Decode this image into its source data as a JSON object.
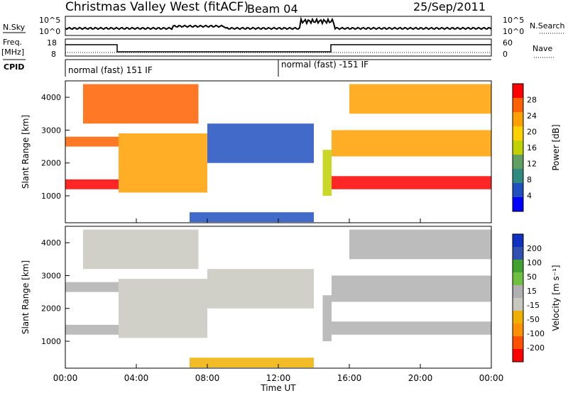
{
  "header": {
    "title": "Christmas Valley West (fitACF)",
    "beam": "Beam 04",
    "date": "25/Sep/2011"
  },
  "labels": {
    "nsky": "N.Sky",
    "freq": "Freq.",
    "mhz": "[MHz]",
    "cpid": "CPID",
    "nsearch": "N.Search",
    "nave": "Nave",
    "time_axis": "Time UT",
    "power_axis": "Power [dB]",
    "velocity_axis": "Velocity [m s⁻¹]",
    "slant_range": "Slant Range [km]"
  },
  "strip_ticks": {
    "nsky_left": [
      "10^5",
      "10^0"
    ],
    "nsky_right": [
      "10^5",
      "10^0"
    ],
    "freq_left": [
      "18",
      "8"
    ],
    "nave_right": [
      "60",
      "0"
    ]
  },
  "cpid": {
    "segments": [
      "normal (fast) 151 IF",
      "normal (fast) -151 IF"
    ]
  },
  "colors": {
    "power_scale": [
      "#0000ff",
      "#2050c0",
      "#308a80",
      "#60a060",
      "#c0d000",
      "#ffd000",
      "#ffa000",
      "#ff6000",
      "#ff0000"
    ],
    "velocity_scale": [
      "#ff0000",
      "#ff5000",
      "#ff9000",
      "#f0b000",
      "#c8c8c0",
      "#b0b0b0",
      "#70c040",
      "#40a030",
      "#3050b0",
      "#1030c0"
    ]
  },
  "chart_data": [
    {
      "type": "heatmap",
      "title": "",
      "xlabel": "Time UT",
      "ylabel": "Slant Range [km]",
      "x_ticks": [
        "00:00",
        "04:00",
        "08:00",
        "12:00",
        "16:00",
        "20:00",
        "00:00"
      ],
      "xlim_hours": [
        0,
        24
      ],
      "ylim": [
        180,
        4500
      ],
      "y_ticks": [
        1000,
        2000,
        3000,
        4000
      ],
      "colorbar": {
        "label": "Power [dB]",
        "ticks": [
          4,
          8,
          12,
          16,
          20,
          24,
          28
        ],
        "range": [
          0,
          30
        ]
      },
      "features": [
        {
          "time_start": 0.0,
          "time_end": 3.0,
          "range_start": 1200,
          "range_end": 1500,
          "level": 28
        },
        {
          "time_start": 0.0,
          "time_end": 3.0,
          "range_start": 2500,
          "range_end": 2800,
          "level": 24
        },
        {
          "time_start": 3.0,
          "time_end": 8.0,
          "range_start": 1100,
          "range_end": 2900,
          "level": 22
        },
        {
          "time_start": 1.0,
          "time_end": 7.5,
          "range_start": 3200,
          "range_end": 4400,
          "level": 24
        },
        {
          "time_start": 8.0,
          "time_end": 14.0,
          "range_start": 2000,
          "range_end": 3200,
          "level": 5
        },
        {
          "time_start": 7.0,
          "time_end": 14.0,
          "range_start": 200,
          "range_end": 500,
          "level": 6
        },
        {
          "time_start": 14.5,
          "time_end": 15.0,
          "range_start": 1000,
          "range_end": 2400,
          "level": 14
        },
        {
          "time_start": 15.0,
          "time_end": 24.0,
          "range_start": 1200,
          "range_end": 1600,
          "level": 28
        },
        {
          "time_start": 15.0,
          "time_end": 24.0,
          "range_start": 2200,
          "range_end": 3000,
          "level": 20
        },
        {
          "time_start": 16.0,
          "time_end": 24.0,
          "range_start": 3500,
          "range_end": 4400,
          "level": 22
        }
      ]
    },
    {
      "type": "heatmap",
      "title": "",
      "xlabel": "Time UT",
      "ylabel": "Slant Range [km]",
      "x_ticks": [
        "00:00",
        "04:00",
        "08:00",
        "12:00",
        "16:00",
        "20:00",
        "00:00"
      ],
      "xlim_hours": [
        0,
        24
      ],
      "ylim": [
        180,
        4500
      ],
      "y_ticks": [
        1000,
        2000,
        3000,
        4000
      ],
      "colorbar": {
        "label": "Velocity [m s⁻¹]",
        "ticks": [
          200,
          100,
          50,
          15,
          -15,
          -50,
          -100,
          -200
        ],
        "range": [
          -250,
          250
        ]
      },
      "features": [
        {
          "time_start": 0.0,
          "time_end": 3.0,
          "range_start": 1200,
          "range_end": 1500,
          "level": 0
        },
        {
          "time_start": 0.0,
          "time_end": 3.0,
          "range_start": 2500,
          "range_end": 2800,
          "level": 0
        },
        {
          "time_start": 3.0,
          "time_end": 8.0,
          "range_start": 1100,
          "range_end": 2900,
          "level": -40
        },
        {
          "time_start": 1.0,
          "time_end": 7.5,
          "range_start": 3200,
          "range_end": 4400,
          "level": -30
        },
        {
          "time_start": 8.0,
          "time_end": 14.0,
          "range_start": 2000,
          "range_end": 3200,
          "level": -20
        },
        {
          "time_start": 7.0,
          "time_end": 14.0,
          "range_start": 200,
          "range_end": 500,
          "level": -60
        },
        {
          "time_start": 14.5,
          "time_end": 15.0,
          "range_start": 1000,
          "range_end": 2400,
          "level": 40
        },
        {
          "time_start": 15.0,
          "time_end": 24.0,
          "range_start": 1200,
          "range_end": 1600,
          "level": 0
        },
        {
          "time_start": 15.0,
          "time_end": 24.0,
          "range_start": 2200,
          "range_end": 3000,
          "level": 0
        },
        {
          "time_start": 16.0,
          "time_end": 24.0,
          "range_start": 3500,
          "range_end": 4400,
          "level": 0
        }
      ]
    }
  ]
}
